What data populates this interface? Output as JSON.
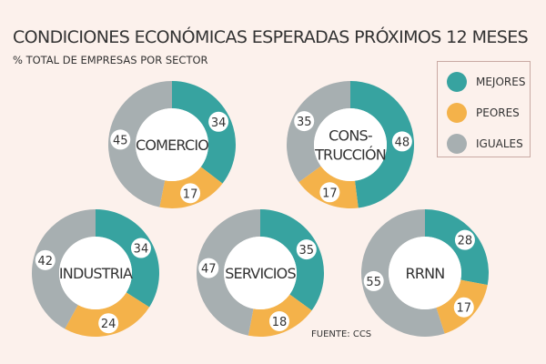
{
  "colors": {
    "background": "#fcf1ec",
    "mejores": "#37a3a0",
    "peores": "#f4b24a",
    "iguales": "#a7afb1",
    "center": "#ffffff",
    "text": "#333333"
  },
  "chart_data": {
    "type": "pie",
    "title": "CONDICIONES ECONÓMICAS ESPERADAS PRÓXIMOS 12 MESES",
    "subtitle": "% TOTAL DE EMPRESAS POR SECTOR",
    "legend_position": "top-right",
    "series_names": [
      "MEJORES",
      "PEORES",
      "IGUALES"
    ],
    "charts": [
      {
        "label_lines": [
          "COMERCIO"
        ],
        "values": [
          34,
          17,
          45
        ]
      },
      {
        "label_lines": [
          "CONS-",
          "TRUCCIÓN"
        ],
        "values": [
          48,
          17,
          35
        ]
      },
      {
        "label_lines": [
          "INDUSTRIA"
        ],
        "values": [
          34,
          24,
          42
        ]
      },
      {
        "label_lines": [
          "SERVICIOS"
        ],
        "values": [
          35,
          18,
          47
        ]
      },
      {
        "label_lines": [
          "RRNN"
        ],
        "values": [
          28,
          17,
          55
        ]
      }
    ]
  },
  "source": "FUENTE: CCS"
}
